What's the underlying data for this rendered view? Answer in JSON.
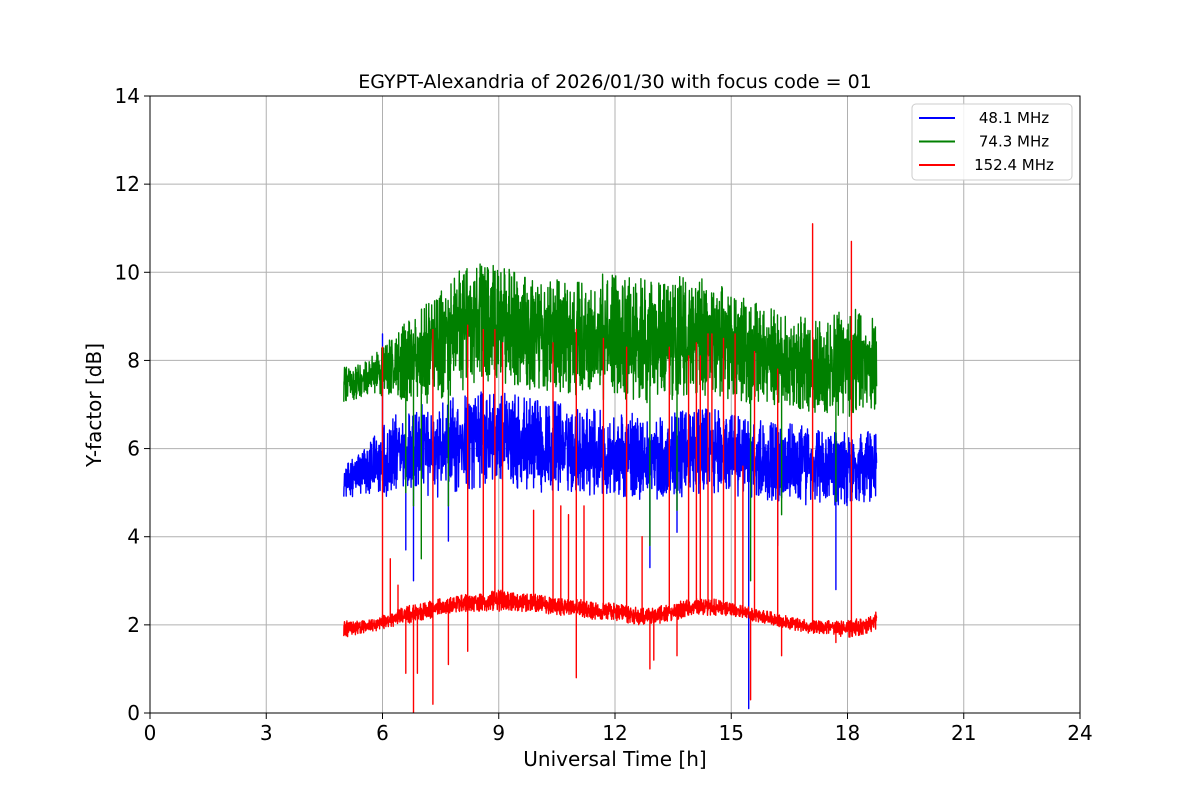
{
  "chart_data": {
    "type": "line",
    "title": "EGYPT-Alexandria of 2026/01/30 with focus code = 01",
    "xlabel": "Universal Time [h]",
    "ylabel": "Y-factor [dB]",
    "xlim": [
      0,
      24
    ],
    "ylim": [
      0,
      14
    ],
    "xticks": [
      "0",
      "3",
      "6",
      "9",
      "12",
      "15",
      "18",
      "21",
      "24"
    ],
    "yticks": [
      "0",
      "2",
      "4",
      "6",
      "8",
      "10",
      "12",
      "14"
    ],
    "grid": true,
    "legend_position": "top-right",
    "series": [
      {
        "name": "48.1 MHz",
        "color": "#0000ff",
        "x": [
          5.0,
          5.5,
          6.0,
          6.5,
          7.0,
          7.5,
          8.0,
          8.5,
          9.0,
          9.5,
          10.0,
          10.5,
          11.0,
          11.5,
          12.0,
          12.5,
          13.0,
          13.5,
          14.0,
          14.5,
          15.0,
          15.5,
          16.0,
          16.5,
          17.0,
          17.5,
          18.0,
          18.5,
          18.75
        ],
        "low": [
          4.9,
          4.9,
          4.9,
          4.9,
          4.9,
          4.9,
          5.0,
          5.1,
          5.2,
          5.1,
          5.0,
          5.0,
          5.0,
          4.9,
          4.9,
          4.8,
          4.8,
          4.9,
          4.9,
          5.0,
          4.9,
          4.9,
          4.8,
          4.8,
          4.7,
          4.7,
          4.7,
          4.8,
          4.8
        ],
        "high": [
          5.6,
          6.0,
          6.6,
          6.9,
          7.0,
          7.1,
          7.2,
          7.3,
          7.3,
          7.2,
          7.1,
          7.1,
          7.0,
          6.9,
          6.8,
          6.8,
          6.7,
          6.8,
          6.9,
          6.9,
          6.8,
          6.7,
          6.6,
          6.6,
          6.5,
          6.4,
          6.4,
          6.4,
          6.4
        ],
        "spikes": [
          [
            6.0,
            8.6
          ],
          [
            6.6,
            3.7
          ],
          [
            6.8,
            3.0
          ],
          [
            7.7,
            3.9
          ],
          [
            12.9,
            3.3
          ],
          [
            13.6,
            4.1
          ],
          [
            15.45,
            0.1
          ],
          [
            16.2,
            3.8
          ],
          [
            17.7,
            2.8
          ]
        ]
      },
      {
        "name": "74.3 MHz",
        "color": "#008000",
        "x": [
          5.0,
          5.5,
          6.0,
          6.5,
          7.0,
          7.5,
          8.0,
          8.5,
          9.0,
          9.5,
          10.0,
          10.5,
          11.0,
          11.5,
          12.0,
          12.5,
          13.0,
          13.5,
          14.0,
          14.5,
          15.0,
          15.5,
          16.0,
          16.5,
          17.0,
          17.5,
          18.0,
          18.5,
          18.75
        ],
        "low": [
          7.0,
          7.2,
          7.2,
          7.1,
          7.0,
          7.1,
          7.3,
          7.5,
          7.5,
          7.4,
          7.3,
          7.3,
          7.2,
          7.1,
          7.0,
          7.0,
          7.0,
          7.1,
          7.2,
          7.2,
          7.1,
          7.0,
          7.0,
          6.9,
          6.8,
          6.8,
          6.7,
          6.8,
          6.9
        ],
        "high": [
          8.0,
          8.0,
          8.3,
          8.8,
          9.2,
          9.6,
          10.2,
          10.3,
          10.2,
          10.0,
          9.8,
          9.9,
          9.8,
          10.0,
          10.0,
          9.9,
          9.8,
          9.9,
          9.9,
          9.8,
          9.6,
          9.4,
          9.2,
          9.0,
          9.0,
          9.0,
          9.2,
          9.2,
          9.0
        ],
        "spikes": [
          [
            6.6,
            5.0
          ],
          [
            6.8,
            4.7
          ],
          [
            7.0,
            3.5
          ],
          [
            7.7,
            4.7
          ],
          [
            12.9,
            3.8
          ],
          [
            13.6,
            4.6
          ],
          [
            15.5,
            3.0
          ],
          [
            16.3,
            4.5
          ],
          [
            17.7,
            4.8
          ]
        ]
      },
      {
        "name": "152.4 MHz",
        "color": "#ff0000",
        "x": [
          5.0,
          5.5,
          6.0,
          6.5,
          7.0,
          7.5,
          8.0,
          8.5,
          9.0,
          9.5,
          10.0,
          10.5,
          11.0,
          11.5,
          12.0,
          12.5,
          13.0,
          13.5,
          14.0,
          14.5,
          15.0,
          15.5,
          16.0,
          16.5,
          17.0,
          17.5,
          18.0,
          18.5,
          18.75
        ],
        "low": [
          1.7,
          1.8,
          1.9,
          2.0,
          2.1,
          2.2,
          2.3,
          2.3,
          2.3,
          2.3,
          2.3,
          2.2,
          2.2,
          2.1,
          2.1,
          2.0,
          2.0,
          2.1,
          2.2,
          2.2,
          2.2,
          2.1,
          2.0,
          1.9,
          1.8,
          1.8,
          1.7,
          1.8,
          1.9
        ],
        "high": [
          2.1,
          2.1,
          2.2,
          2.4,
          2.5,
          2.6,
          2.7,
          2.7,
          2.8,
          2.7,
          2.7,
          2.6,
          2.6,
          2.5,
          2.5,
          2.4,
          2.4,
          2.5,
          2.6,
          2.6,
          2.5,
          2.4,
          2.3,
          2.2,
          2.1,
          2.1,
          2.1,
          2.2,
          2.3
        ],
        "spikes": [
          [
            6.0,
            8.3
          ],
          [
            6.2,
            3.5
          ],
          [
            6.4,
            2.9
          ],
          [
            6.6,
            0.9
          ],
          [
            6.8,
            0.0
          ],
          [
            6.9,
            0.9
          ],
          [
            7.3,
            8.7
          ],
          [
            7.3,
            0.2
          ],
          [
            7.7,
            1.1
          ],
          [
            8.2,
            8.8
          ],
          [
            8.2,
            1.4
          ],
          [
            8.6,
            8.7
          ],
          [
            8.9,
            8.7
          ],
          [
            9.1,
            8.4
          ],
          [
            9.9,
            4.6
          ],
          [
            10.4,
            8.4
          ],
          [
            10.6,
            4.7
          ],
          [
            10.8,
            4.5
          ],
          [
            11.0,
            8.7
          ],
          [
            11.0,
            0.8
          ],
          [
            11.2,
            4.7
          ],
          [
            11.7,
            8.5
          ],
          [
            12.3,
            8.3
          ],
          [
            12.7,
            4.0
          ],
          [
            12.9,
            1.0
          ],
          [
            13.0,
            1.2
          ],
          [
            13.4,
            8.3
          ],
          [
            13.6,
            1.3
          ],
          [
            13.9,
            8.1
          ],
          [
            14.1,
            8.4
          ],
          [
            14.2,
            8.1
          ],
          [
            14.4,
            8.6
          ],
          [
            14.5,
            8.6
          ],
          [
            14.8,
            8.5
          ],
          [
            15.1,
            8.6
          ],
          [
            15.3,
            5.6
          ],
          [
            15.5,
            0.3
          ],
          [
            15.6,
            8.2
          ],
          [
            16.2,
            7.8
          ],
          [
            16.3,
            1.3
          ],
          [
            17.1,
            11.1
          ],
          [
            17.7,
            1.6
          ],
          [
            18.1,
            10.7
          ]
        ]
      }
    ]
  }
}
